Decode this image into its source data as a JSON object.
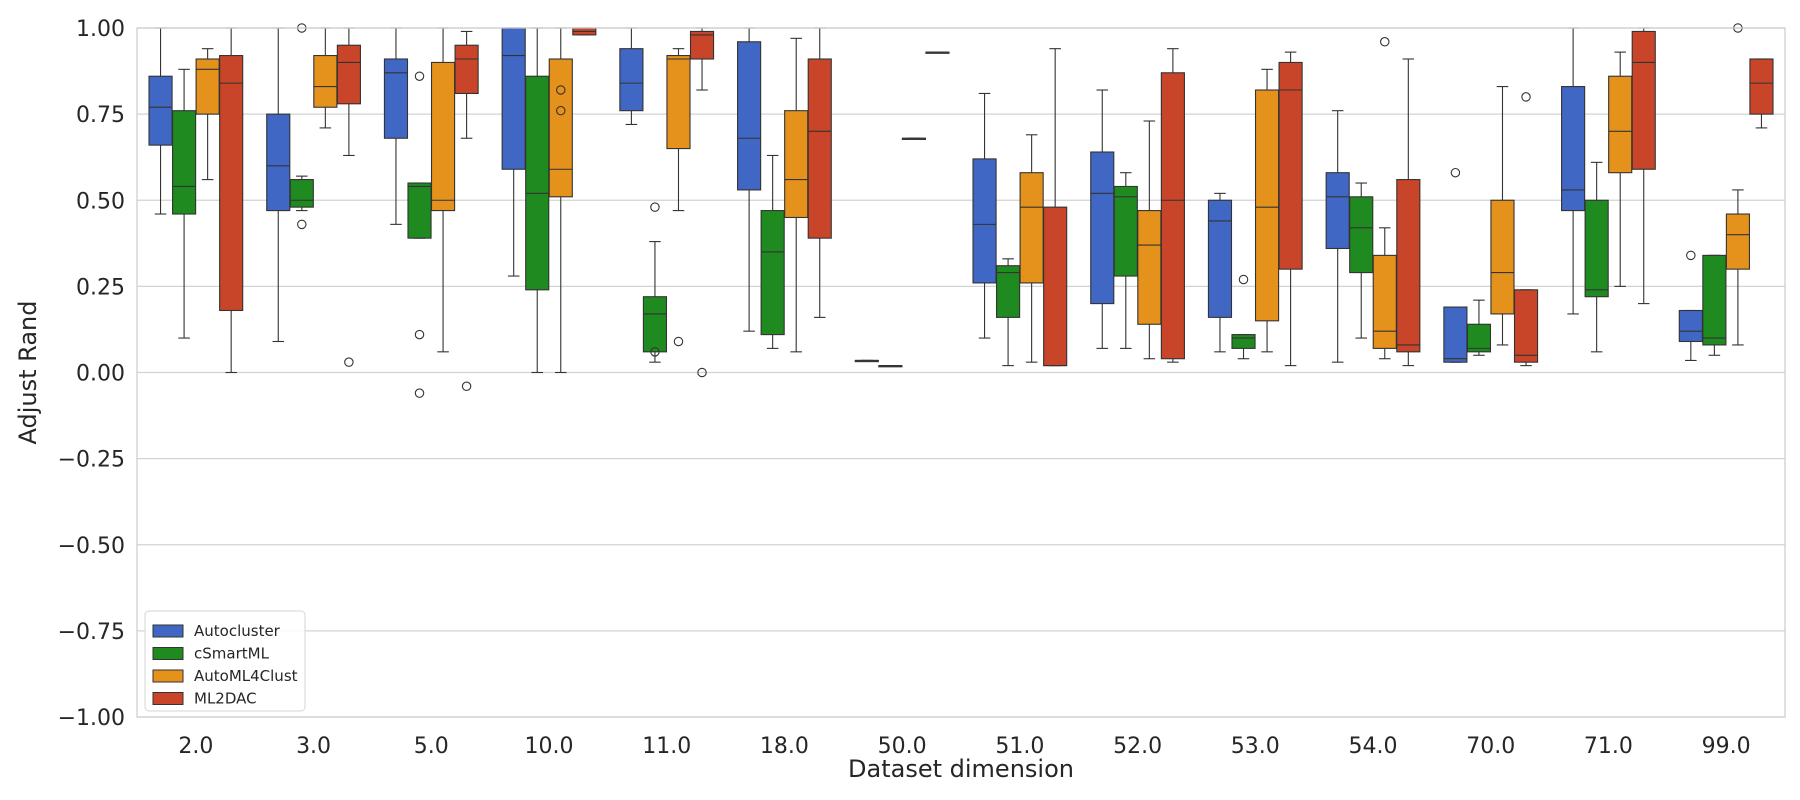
{
  "chart_data": {
    "type": "boxplot",
    "title": "",
    "xlabel": "Dataset dimension",
    "ylabel": "Adjust Rand",
    "ylim": [
      -1.0,
      1.0
    ],
    "yticks": [
      "1.00",
      "0.75",
      "0.50",
      "0.25",
      "0.00",
      "−0.25",
      "−0.50",
      "−0.75",
      "−1.00"
    ],
    "ytick_values": [
      1.0,
      0.75,
      0.5,
      0.25,
      0.0,
      -0.25,
      -0.5,
      -0.75,
      -1.0
    ],
    "grid": "horizontal",
    "legend_position": "lower-left",
    "categories": [
      "2.0",
      "3.0",
      "5.0",
      "10.0",
      "11.0",
      "18.0",
      "50.0",
      "51.0",
      "52.0",
      "53.0",
      "54.0",
      "70.0",
      "71.0",
      "99.0"
    ],
    "series": [
      {
        "name": "Autocluster",
        "color": "#4067c4",
        "boxes": [
          {
            "whislo": 0.46,
            "q1": 0.66,
            "med": 0.77,
            "q3": 0.86,
            "whishi": 1.0,
            "fliers": []
          },
          {
            "whislo": 0.09,
            "q1": 0.47,
            "med": 0.6,
            "q3": 0.75,
            "whishi": 1.0,
            "fliers": []
          },
          {
            "whislo": 0.43,
            "q1": 0.68,
            "med": 0.87,
            "q3": 0.91,
            "whishi": 1.0,
            "fliers": []
          },
          {
            "whislo": 0.28,
            "q1": 0.59,
            "med": 0.92,
            "q3": 1.0,
            "whishi": 1.0,
            "fliers": []
          },
          {
            "whislo": 0.72,
            "q1": 0.76,
            "med": 0.84,
            "q3": 0.94,
            "whishi": 1.0,
            "fliers": []
          },
          {
            "whislo": 0.12,
            "q1": 0.53,
            "med": 0.68,
            "q3": 0.96,
            "whishi": 1.0,
            "fliers": []
          },
          {
            "whislo": 0.035,
            "q1": 0.035,
            "med": 0.035,
            "q3": 0.035,
            "whishi": 0.035,
            "fliers": []
          },
          {
            "whislo": 0.1,
            "q1": 0.26,
            "med": 0.43,
            "q3": 0.62,
            "whishi": 0.81,
            "fliers": []
          },
          {
            "whislo": 0.07,
            "q1": 0.2,
            "med": 0.52,
            "q3": 0.64,
            "whishi": 0.82,
            "fliers": []
          },
          {
            "whislo": 0.06,
            "q1": 0.16,
            "med": 0.44,
            "q3": 0.5,
            "whishi": 0.52,
            "fliers": []
          },
          {
            "whislo": 0.03,
            "q1": 0.36,
            "med": 0.51,
            "q3": 0.58,
            "whishi": 0.76,
            "fliers": []
          },
          {
            "whislo": 0.03,
            "q1": 0.03,
            "med": 0.04,
            "q3": 0.19,
            "whishi": 0.19,
            "fliers": [
              0.58
            ]
          },
          {
            "whislo": 0.17,
            "q1": 0.47,
            "med": 0.53,
            "q3": 0.83,
            "whishi": 1.0,
            "fliers": []
          },
          {
            "whislo": 0.035,
            "q1": 0.09,
            "med": 0.12,
            "q3": 0.18,
            "whishi": 0.18,
            "fliers": [
              0.34
            ]
          }
        ]
      },
      {
        "name": "cSmartML",
        "color": "#1f8a1f",
        "boxes": [
          {
            "whislo": 0.1,
            "q1": 0.46,
            "med": 0.54,
            "q3": 0.76,
            "whishi": 0.88,
            "fliers": []
          },
          {
            "whislo": 0.47,
            "q1": 0.48,
            "med": 0.5,
            "q3": 0.56,
            "whishi": 0.57,
            "fliers": [
              1.0,
              0.43
            ]
          },
          {
            "whislo": 0.39,
            "q1": 0.39,
            "med": 0.54,
            "q3": 0.55,
            "whishi": 0.55,
            "fliers": [
              0.86,
              0.11,
              -0.06
            ]
          },
          {
            "whislo": 0.0,
            "q1": 0.24,
            "med": 0.52,
            "q3": 0.86,
            "whishi": 1.0,
            "fliers": []
          },
          {
            "whislo": 0.03,
            "q1": 0.06,
            "med": 0.17,
            "q3": 0.22,
            "whishi": 0.38,
            "fliers": [
              0.48,
              0.06
            ]
          },
          {
            "whislo": 0.07,
            "q1": 0.11,
            "med": 0.35,
            "q3": 0.47,
            "whishi": 0.63,
            "fliers": []
          },
          {
            "whislo": 0.02,
            "q1": 0.02,
            "med": 0.02,
            "q3": 0.02,
            "whishi": 0.02,
            "fliers": []
          },
          {
            "whislo": 0.02,
            "q1": 0.16,
            "med": 0.29,
            "q3": 0.31,
            "whishi": 0.33,
            "fliers": []
          },
          {
            "whislo": 0.07,
            "q1": 0.28,
            "med": 0.51,
            "q3": 0.54,
            "whishi": 0.58,
            "fliers": []
          },
          {
            "whislo": 0.04,
            "q1": 0.07,
            "med": 0.1,
            "q3": 0.11,
            "whishi": 0.11,
            "fliers": [
              0.27
            ]
          },
          {
            "whislo": 0.1,
            "q1": 0.29,
            "med": 0.42,
            "q3": 0.51,
            "whishi": 0.55,
            "fliers": []
          },
          {
            "whislo": 0.05,
            "q1": 0.06,
            "med": 0.07,
            "q3": 0.14,
            "whishi": 0.21,
            "fliers": []
          },
          {
            "whislo": 0.06,
            "q1": 0.22,
            "med": 0.24,
            "q3": 0.5,
            "whishi": 0.61,
            "fliers": []
          },
          {
            "whislo": 0.05,
            "q1": 0.08,
            "med": 0.1,
            "q3": 0.34,
            "whishi": 0.34,
            "fliers": []
          }
        ]
      },
      {
        "name": "AutoML4Clust",
        "color": "#e5921c",
        "boxes": [
          {
            "whislo": 0.56,
            "q1": 0.75,
            "med": 0.88,
            "q3": 0.91,
            "whishi": 0.94,
            "fliers": []
          },
          {
            "whislo": 0.71,
            "q1": 0.77,
            "med": 0.83,
            "q3": 0.92,
            "whishi": 1.0,
            "fliers": []
          },
          {
            "whislo": 0.06,
            "q1": 0.47,
            "med": 0.5,
            "q3": 0.9,
            "whishi": 1.0,
            "fliers": []
          },
          {
            "whislo": 0.0,
            "q1": 0.51,
            "med": 0.59,
            "q3": 0.91,
            "whishi": 1.0,
            "fliers": [
              0.82,
              0.76
            ]
          },
          {
            "whislo": 0.47,
            "q1": 0.65,
            "med": 0.91,
            "q3": 0.92,
            "whishi": 0.94,
            "fliers": [
              0.09
            ]
          },
          {
            "whislo": 0.06,
            "q1": 0.45,
            "med": 0.56,
            "q3": 0.76,
            "whishi": 0.97,
            "fliers": []
          },
          {
            "whislo": 0.68,
            "q1": 0.68,
            "med": 0.68,
            "q3": 0.68,
            "whishi": 0.68,
            "fliers": []
          },
          {
            "whislo": 0.03,
            "q1": 0.26,
            "med": 0.48,
            "q3": 0.58,
            "whishi": 0.69,
            "fliers": []
          },
          {
            "whislo": 0.04,
            "q1": 0.14,
            "med": 0.37,
            "q3": 0.47,
            "whishi": 0.73,
            "fliers": []
          },
          {
            "whislo": 0.06,
            "q1": 0.15,
            "med": 0.48,
            "q3": 0.82,
            "whishi": 0.88,
            "fliers": []
          },
          {
            "whislo": 0.04,
            "q1": 0.07,
            "med": 0.12,
            "q3": 0.34,
            "whishi": 0.42,
            "fliers": [
              0.96
            ]
          },
          {
            "whislo": 0.08,
            "q1": 0.17,
            "med": 0.29,
            "q3": 0.5,
            "whishi": 0.83,
            "fliers": []
          },
          {
            "whislo": 0.25,
            "q1": 0.58,
            "med": 0.7,
            "q3": 0.86,
            "whishi": 0.93,
            "fliers": []
          },
          {
            "whislo": 0.08,
            "q1": 0.3,
            "med": 0.4,
            "q3": 0.46,
            "whishi": 0.53,
            "fliers": [
              1.0
            ]
          }
        ]
      },
      {
        "name": "ML2DAC",
        "color": "#c8452a",
        "boxes": [
          {
            "whislo": 0.0,
            "q1": 0.18,
            "med": 0.84,
            "q3": 0.92,
            "whishi": 1.0,
            "fliers": []
          },
          {
            "whislo": 0.63,
            "q1": 0.78,
            "med": 0.9,
            "q3": 0.95,
            "whishi": 1.0,
            "fliers": [
              0.03
            ]
          },
          {
            "whislo": 0.68,
            "q1": 0.81,
            "med": 0.91,
            "q3": 0.95,
            "whishi": 0.99,
            "fliers": [
              -0.04
            ]
          },
          {
            "whislo": 0.98,
            "q1": 0.98,
            "med": 0.99,
            "q3": 1.0,
            "whishi": 1.0,
            "fliers": []
          },
          {
            "whislo": 0.82,
            "q1": 0.91,
            "med": 0.98,
            "q3": 0.99,
            "whishi": 1.0,
            "fliers": [
              0.0
            ]
          },
          {
            "whislo": 0.16,
            "q1": 0.39,
            "med": 0.7,
            "q3": 0.91,
            "whishi": 1.0,
            "fliers": []
          },
          {
            "whislo": 0.93,
            "q1": 0.93,
            "med": 0.93,
            "q3": 0.93,
            "whishi": 0.93,
            "fliers": []
          },
          {
            "whislo": 0.02,
            "q1": 0.02,
            "med": 0.02,
            "q3": 0.48,
            "whishi": 0.94,
            "fliers": []
          },
          {
            "whislo": 0.03,
            "q1": 0.04,
            "med": 0.5,
            "q3": 0.87,
            "whishi": 0.94,
            "fliers": []
          },
          {
            "whislo": 0.02,
            "q1": 0.3,
            "med": 0.82,
            "q3": 0.9,
            "whishi": 0.93,
            "fliers": []
          },
          {
            "whislo": 0.02,
            "q1": 0.06,
            "med": 0.08,
            "q3": 0.56,
            "whishi": 0.91,
            "fliers": []
          },
          {
            "whislo": 0.02,
            "q1": 0.03,
            "med": 0.05,
            "q3": 0.24,
            "whishi": 0.24,
            "fliers": [
              0.8
            ]
          },
          {
            "whislo": 0.2,
            "q1": 0.59,
            "med": 0.9,
            "q3": 0.99,
            "whishi": 1.0,
            "fliers": []
          },
          {
            "whislo": 0.71,
            "q1": 0.75,
            "med": 0.84,
            "q3": 0.91,
            "whishi": 0.91,
            "fliers": []
          }
        ]
      }
    ]
  }
}
